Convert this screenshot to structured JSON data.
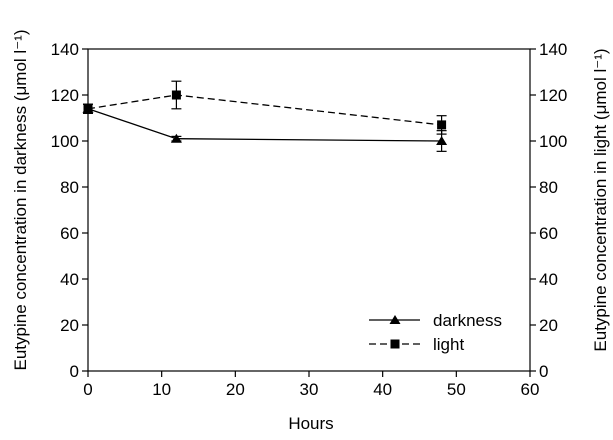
{
  "chart_data": {
    "type": "line",
    "xlabel": "Hours",
    "ylabel_left": "Eutypine concentration in darkness (μmol l⁻¹)",
    "ylabel_right": "Eutypine concentration in light (μmol l⁻¹)",
    "xlim": [
      0,
      60
    ],
    "ylim": [
      0,
      140
    ],
    "xticks": [
      0,
      10,
      20,
      30,
      40,
      50,
      60
    ],
    "yticks": [
      0,
      20,
      40,
      60,
      80,
      100,
      120,
      140
    ],
    "grid": false,
    "legend_position": "bottom-right",
    "series": [
      {
        "name": "darkness",
        "marker": "triangle",
        "line_style": "solid",
        "x": [
          0,
          12,
          48
        ],
        "y": [
          114,
          101,
          100
        ],
        "error": [
          2,
          1,
          4.5
        ]
      },
      {
        "name": "light",
        "marker": "square",
        "line_style": "dashed",
        "x": [
          0,
          12,
          48
        ],
        "y": [
          114,
          120,
          107
        ],
        "error": [
          2,
          6,
          4
        ]
      }
    ]
  },
  "colors": {
    "line": "#000000",
    "background": "#ffffff"
  }
}
